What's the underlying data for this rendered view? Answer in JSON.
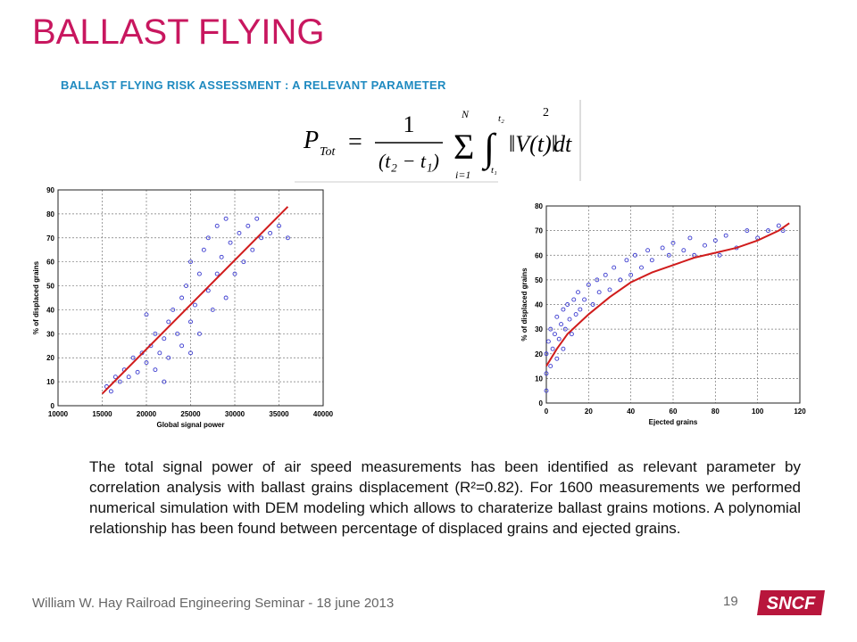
{
  "header": {
    "title": "BALLAST FLYING",
    "subtitle": "BALLAST FLYING RISK ASSESSMENT : A RELEVANT PARAMETER"
  },
  "formula": {
    "lhs": "P",
    "lhs_sub": "Tot",
    "equals": "=",
    "numerator": "1",
    "denominator": "(t₂ − t₁)",
    "sum": "Σ",
    "sum_upper": "N",
    "sum_lower": "i=1",
    "integral": "∫",
    "int_upper": "t₂",
    "int_lower": "t₁",
    "body": "‖V(t)‖",
    "power": "2",
    "dt": "dt"
  },
  "chart_data": [
    {
      "type": "scatter",
      "x_label": "Global signal power",
      "y_label": "% of displaced grains",
      "xlim": [
        10000,
        40000
      ],
      "xticks": [
        10000,
        15000,
        20000,
        25000,
        30000,
        35000,
        40000
      ],
      "ylim": [
        0,
        90
      ],
      "yticks": [
        0,
        10,
        20,
        30,
        40,
        50,
        60,
        70,
        80,
        90
      ],
      "grid": true,
      "series": [
        {
          "style": "markers",
          "color": "#3a3acf",
          "x": [
            15500,
            16000,
            16500,
            17000,
            17500,
            18000,
            18500,
            19000,
            19500,
            20000,
            20500,
            21000,
            21000,
            21500,
            22000,
            22500,
            22500,
            23000,
            23500,
            24000,
            24000,
            24500,
            25000,
            25000,
            25500,
            26000,
            26000,
            26500,
            27000,
            27000,
            27500,
            28000,
            28000,
            28500,
            29000,
            29000,
            29500,
            30000,
            30500,
            31000,
            31500,
            32000,
            32500,
            33000,
            34000,
            35000,
            36000,
            22000,
            20000,
            25000
          ],
          "values": [
            8,
            6,
            12,
            10,
            15,
            12,
            20,
            14,
            22,
            18,
            25,
            15,
            30,
            22,
            28,
            35,
            20,
            40,
            30,
            45,
            25,
            50,
            35,
            60,
            42,
            55,
            30,
            65,
            48,
            70,
            40,
            75,
            55,
            62,
            45,
            78,
            68,
            55,
            72,
            60,
            75,
            65,
            78,
            70,
            72,
            75,
            70,
            10,
            38,
            22
          ]
        },
        {
          "style": "line",
          "color": "#d01c1c",
          "x": [
            15000,
            36000
          ],
          "values": [
            5,
            83
          ]
        }
      ]
    },
    {
      "type": "scatter",
      "x_label": "Ejected grains",
      "y_label": "% of displaced grains",
      "xlim": [
        0,
        120
      ],
      "xticks": [
        0,
        20,
        40,
        60,
        80,
        100,
        120
      ],
      "ylim": [
        0,
        80
      ],
      "yticks": [
        0,
        10,
        20,
        30,
        40,
        50,
        60,
        70,
        80
      ],
      "grid": true,
      "series": [
        {
          "style": "markers",
          "color": "#3a3acf",
          "x": [
            0,
            0,
            0,
            1,
            2,
            2,
            3,
            4,
            5,
            5,
            6,
            7,
            8,
            8,
            9,
            10,
            11,
            12,
            13,
            14,
            15,
            16,
            18,
            20,
            22,
            24,
            25,
            28,
            30,
            32,
            35,
            38,
            40,
            42,
            45,
            48,
            50,
            55,
            58,
            60,
            65,
            68,
            70,
            75,
            80,
            82,
            85,
            90,
            95,
            100,
            105,
            110,
            112
          ],
          "values": [
            5,
            12,
            20,
            25,
            15,
            30,
            22,
            28,
            18,
            35,
            26,
            32,
            22,
            38,
            30,
            40,
            34,
            28,
            42,
            36,
            45,
            38,
            42,
            48,
            40,
            50,
            45,
            52,
            46,
            55,
            50,
            58,
            52,
            60,
            55,
            62,
            58,
            63,
            60,
            65,
            62,
            67,
            60,
            64,
            66,
            60,
            68,
            63,
            70,
            67,
            70,
            72,
            70
          ]
        },
        {
          "style": "line",
          "color": "#d01c1c",
          "x": [
            0,
            5,
            10,
            20,
            30,
            40,
            50,
            60,
            70,
            80,
            90,
            100,
            110,
            115
          ],
          "values": [
            15,
            22,
            28,
            36,
            43,
            49,
            53,
            56,
            59,
            61,
            63,
            66,
            70,
            73
          ]
        }
      ]
    }
  ],
  "body": {
    "text": "The total signal power of air speed measurements has been identified as relevant parameter by correlation analysis with ballast grains displacement (R²=0.82). For 1600 measurements we performed numerical simulation with DEM modeling which allows to charaterize ballast grains motions. A polynomial relationship has been found between percentage of displaced grains and ejected grains."
  },
  "footer": {
    "credit": "William W. Hay Railroad Engineering Seminar - 18 june 2013",
    "page": "19",
    "logo": "SNCF"
  }
}
